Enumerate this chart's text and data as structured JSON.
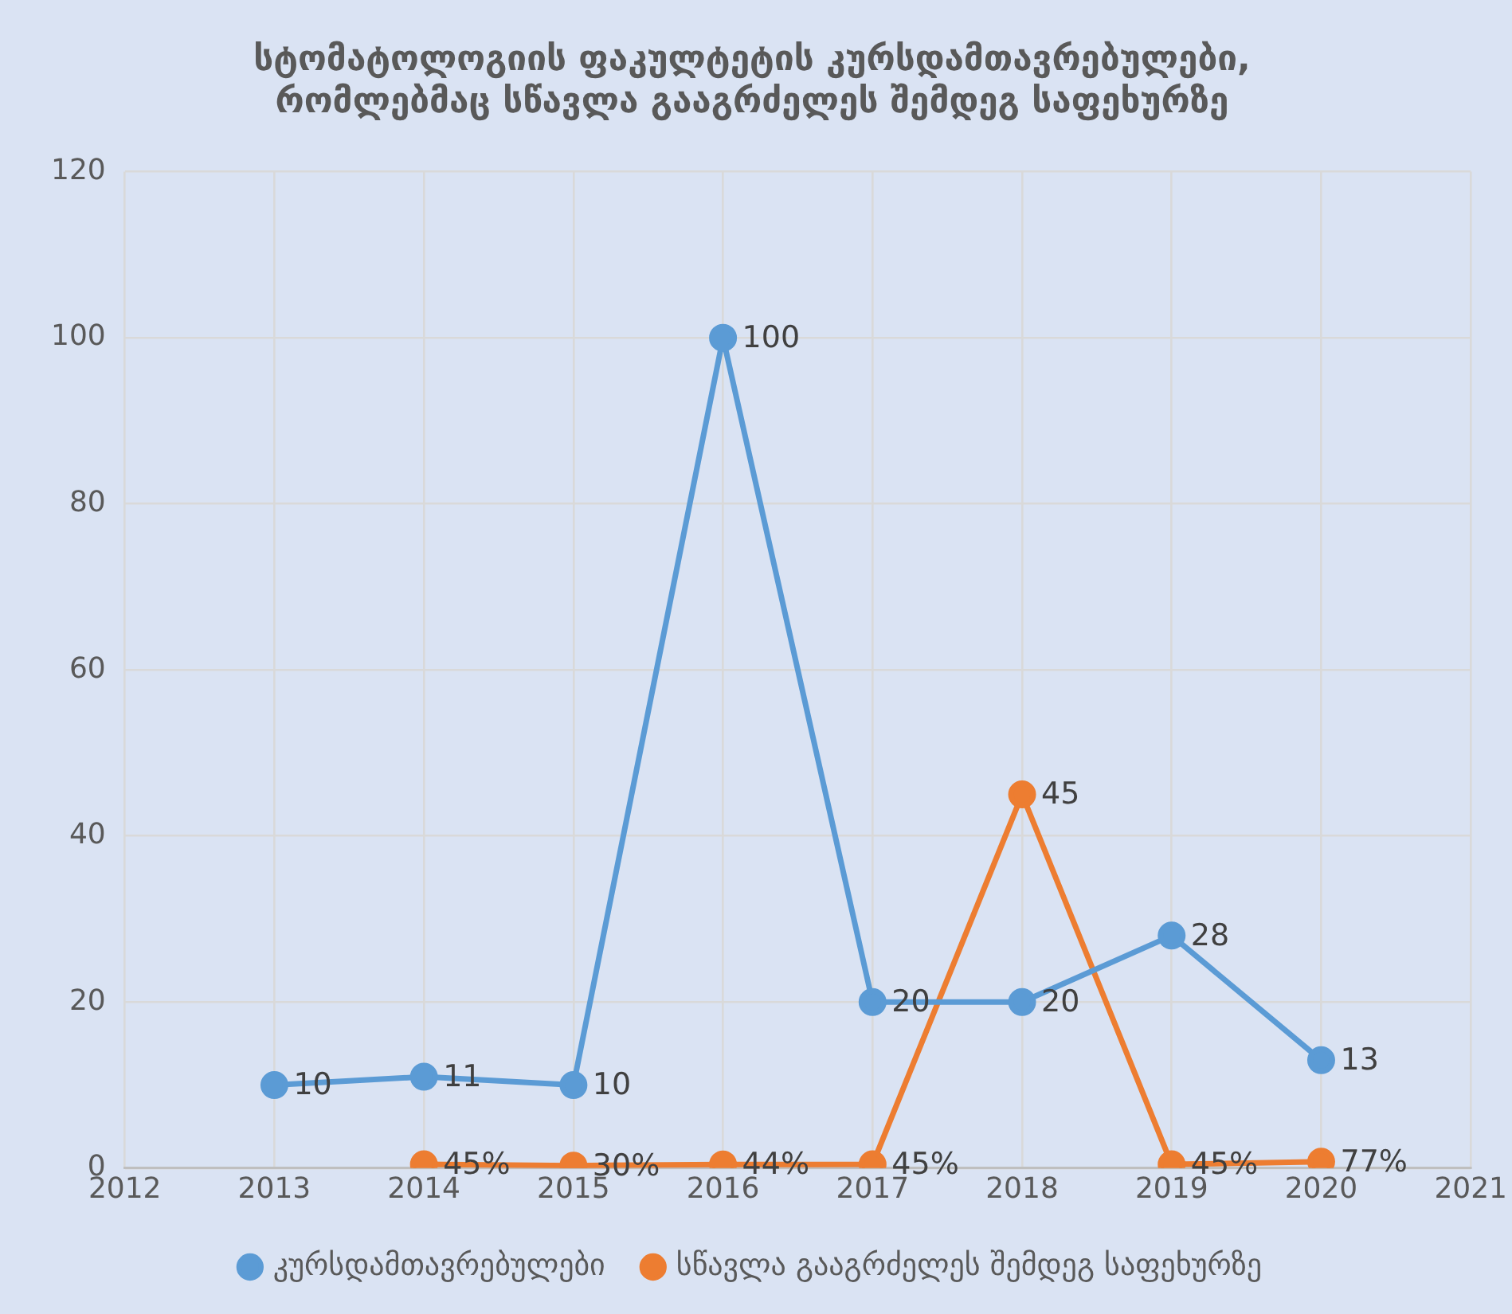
{
  "chart_data": {
    "type": "line",
    "title": "სტომატოლოგიის ფაკულტეტის კურსდამთავრებულები,\nრომლებმაც სწავლა გააგრძელეს შემდეგ საფეხურზე",
    "xlim": [
      2012,
      2021
    ],
    "xticks": [
      2012,
      2013,
      2014,
      2015,
      2016,
      2017,
      2018,
      2019,
      2020,
      2021
    ],
    "ylim": [
      0,
      120
    ],
    "yticks": [
      0,
      20,
      40,
      60,
      80,
      100,
      120
    ],
    "grid": true,
    "legend": "bottom",
    "marker": "circle",
    "line_style": "solid",
    "series": [
      {
        "name": "კურსდამთავრებულები",
        "color": "#5b9bd5",
        "x": [
          2013,
          2014,
          2015,
          2016,
          2017,
          2018,
          2019,
          2020
        ],
        "values": [
          10,
          11,
          10,
          100,
          20,
          20,
          28,
          13
        ],
        "value_labels": [
          "10",
          "11",
          "10",
          "100",
          "20",
          "20",
          "28",
          "13"
        ]
      },
      {
        "name": "სწავლა გააგრძელეს შემდეგ საფეხურზე",
        "color": "#ed7d31",
        "x": [
          2014,
          2015,
          2016,
          2017,
          2018,
          2019,
          2020
        ],
        "values": [
          0.45,
          0.3,
          0.44,
          0.45,
          45,
          0.45,
          0.77
        ],
        "value_labels": [
          "45%",
          "30%",
          "44%",
          "45%",
          "45",
          "45%",
          "77%"
        ]
      }
    ]
  }
}
